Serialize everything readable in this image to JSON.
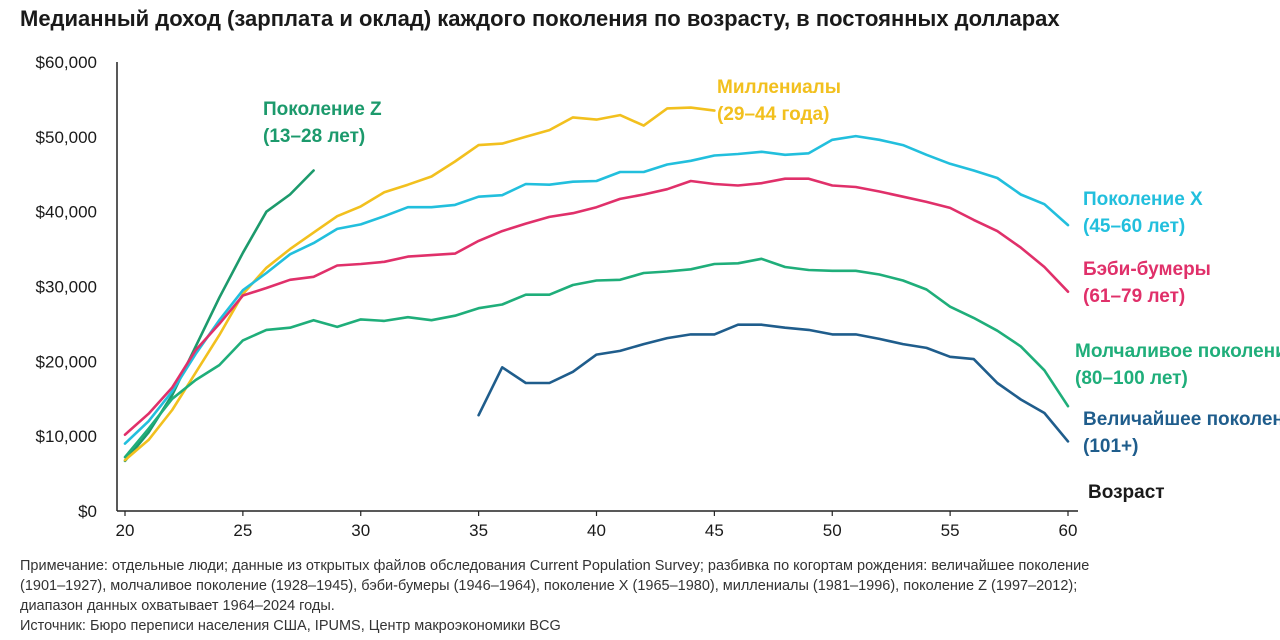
{
  "title": "Медианный доход (зарплата и оклад) каждого поколения по возрасту, в постоянных долларах",
  "notes": [
    "Примечание: отдельные люди; данные из открытых файлов обследования Current Population Survey; разбивка по когортам рождения: величайшее поколение",
    "(1901–1927), молчаливое поколение (1928–1945), бэби-бумеры (1946–1964), поколение X (1965–1980), миллениалы (1981–1996), поколение Z (1997–2012);",
    "диапазон данных охватывает 1964–2024 годы.",
    "Источник: Бюро переписи населения США, IPUMS, Центр макроэкономики BCG"
  ],
  "chart_data": {
    "type": "line",
    "title": "Медианный доход (зарплата и оклад) каждого поколения по возрасту, в постоянных долларах",
    "xlabel": "Возраст",
    "ylabel": "",
    "xlim": [
      20,
      60
    ],
    "ylim": [
      0,
      60000
    ],
    "xticks": [
      20,
      25,
      30,
      35,
      40,
      45,
      50,
      55,
      60
    ],
    "xtick_labels": [
      "20",
      "25",
      "30",
      "35",
      "40",
      "45",
      "50",
      "55",
      "60"
    ],
    "yticks": [
      0,
      10000,
      20000,
      30000,
      40000,
      50000,
      60000
    ],
    "ytick_labels": [
      "$0",
      "$10,000",
      "$20,000",
      "$30,000",
      "$40,000",
      "$50,000",
      "$60,000"
    ],
    "grid": false,
    "legend": "inline labels at line ends",
    "series": [
      {
        "label_lines": [
          "Поколение Z",
          "(13–28 лет)"
        ],
        "color": "#1c9a6c",
        "x": [
          20,
          21,
          22,
          23,
          24,
          25,
          26,
          27,
          28
        ],
        "y": [
          6700,
          10500,
          15500,
          22000,
          28500,
          34500,
          40000,
          42300,
          45500
        ]
      },
      {
        "label_lines": [
          "Миллениалы",
          "(29–44 года)"
        ],
        "color": "#f2c01e",
        "x": [
          20,
          21,
          22,
          23,
          24,
          25,
          26,
          27,
          28,
          29,
          30,
          31,
          32,
          33,
          34,
          35,
          36,
          37,
          38,
          39,
          40,
          41,
          42,
          43,
          44,
          45
        ],
        "y": [
          6800,
          9500,
          13500,
          18500,
          23500,
          29000,
          32500,
          35000,
          37200,
          39400,
          40700,
          42600,
          43600,
          44700,
          46700,
          48900,
          49100,
          50000,
          50900,
          52600,
          52300,
          52900,
          51500,
          53800,
          53900,
          53500
        ]
      },
      {
        "label_lines": [
          "Поколение X",
          "(45–60 лет)"
        ],
        "color": "#22bfdd",
        "x": [
          20,
          21,
          22,
          23,
          24,
          25,
          26,
          27,
          28,
          29,
          30,
          31,
          32,
          33,
          34,
          35,
          36,
          37,
          38,
          39,
          40,
          41,
          42,
          43,
          44,
          45,
          46,
          47,
          48,
          49,
          50,
          51,
          52,
          53,
          54,
          55,
          56,
          57,
          58,
          59,
          60
        ],
        "y": [
          9000,
          12000,
          16000,
          21000,
          25500,
          29500,
          31800,
          34300,
          35800,
          37700,
          38300,
          39400,
          40600,
          40600,
          40900,
          42000,
          42200,
          43700,
          43600,
          44000,
          44100,
          45300,
          45300,
          46300,
          46800,
          47500,
          47700,
          48000,
          47600,
          47800,
          49600,
          50100,
          49600,
          48900,
          47600,
          46400,
          45500,
          44500,
          42300,
          41000,
          38200
        ]
      },
      {
        "label_lines": [
          "Бэби-бумеры",
          "(61–79 лет)"
        ],
        "color": "#e0306a",
        "x": [
          20,
          21,
          22,
          23,
          24,
          25,
          26,
          27,
          28,
          29,
          30,
          31,
          32,
          33,
          34,
          35,
          36,
          37,
          38,
          39,
          40,
          41,
          42,
          43,
          44,
          45,
          46,
          47,
          48,
          49,
          50,
          51,
          52,
          53,
          54,
          55,
          56,
          57,
          58,
          59,
          60
        ],
        "y": [
          10200,
          13000,
          16500,
          21500,
          25000,
          28800,
          29800,
          30900,
          31300,
          32800,
          33000,
          33300,
          34000,
          34200,
          34400,
          36100,
          37400,
          38400,
          39300,
          39800,
          40600,
          41700,
          42300,
          43000,
          44100,
          43700,
          43500,
          43800,
          44400,
          44400,
          43500,
          43300,
          42700,
          42000,
          41300,
          40500,
          38900,
          37400,
          35200,
          32600,
          29300
        ]
      },
      {
        "label_lines": [
          "Молчаливое поколение",
          "(80–100 лет)"
        ],
        "color": "#1fae7a",
        "x": [
          20,
          21,
          22,
          23,
          24,
          25,
          26,
          27,
          28,
          29,
          30,
          31,
          32,
          33,
          34,
          35,
          36,
          37,
          38,
          39,
          40,
          41,
          42,
          43,
          44,
          45,
          46,
          47,
          48,
          49,
          50,
          51,
          52,
          53,
          54,
          55,
          56,
          57,
          58,
          59,
          60
        ],
        "y": [
          7200,
          11000,
          15000,
          17500,
          19500,
          22800,
          24200,
          24500,
          25500,
          24600,
          25600,
          25400,
          25900,
          25500,
          26100,
          27100,
          27600,
          28900,
          28900,
          30200,
          30800,
          30900,
          31800,
          32000,
          32300,
          33000,
          33100,
          33700,
          32600,
          32200,
          32100,
          32100,
          31600,
          30800,
          29600,
          27300,
          25800,
          24100,
          22000,
          18800,
          14000
        ]
      },
      {
        "label_lines": [
          "Величайшее поколение",
          "(101+)"
        ],
        "color": "#1f5d8c",
        "x": [
          35,
          36,
          37,
          38,
          39,
          40,
          41,
          42,
          43,
          44,
          45,
          46,
          47,
          48,
          49,
          50,
          51,
          52,
          53,
          54,
          55,
          56,
          57,
          58,
          59,
          60
        ],
        "y": [
          12800,
          19200,
          17100,
          17100,
          18600,
          20900,
          21400,
          22300,
          23100,
          23600,
          23600,
          24900,
          24900,
          24500,
          24200,
          23600,
          23600,
          23000,
          22300,
          21800,
          20600,
          20300,
          17100,
          14900,
          13100,
          9300
        ]
      }
    ]
  }
}
